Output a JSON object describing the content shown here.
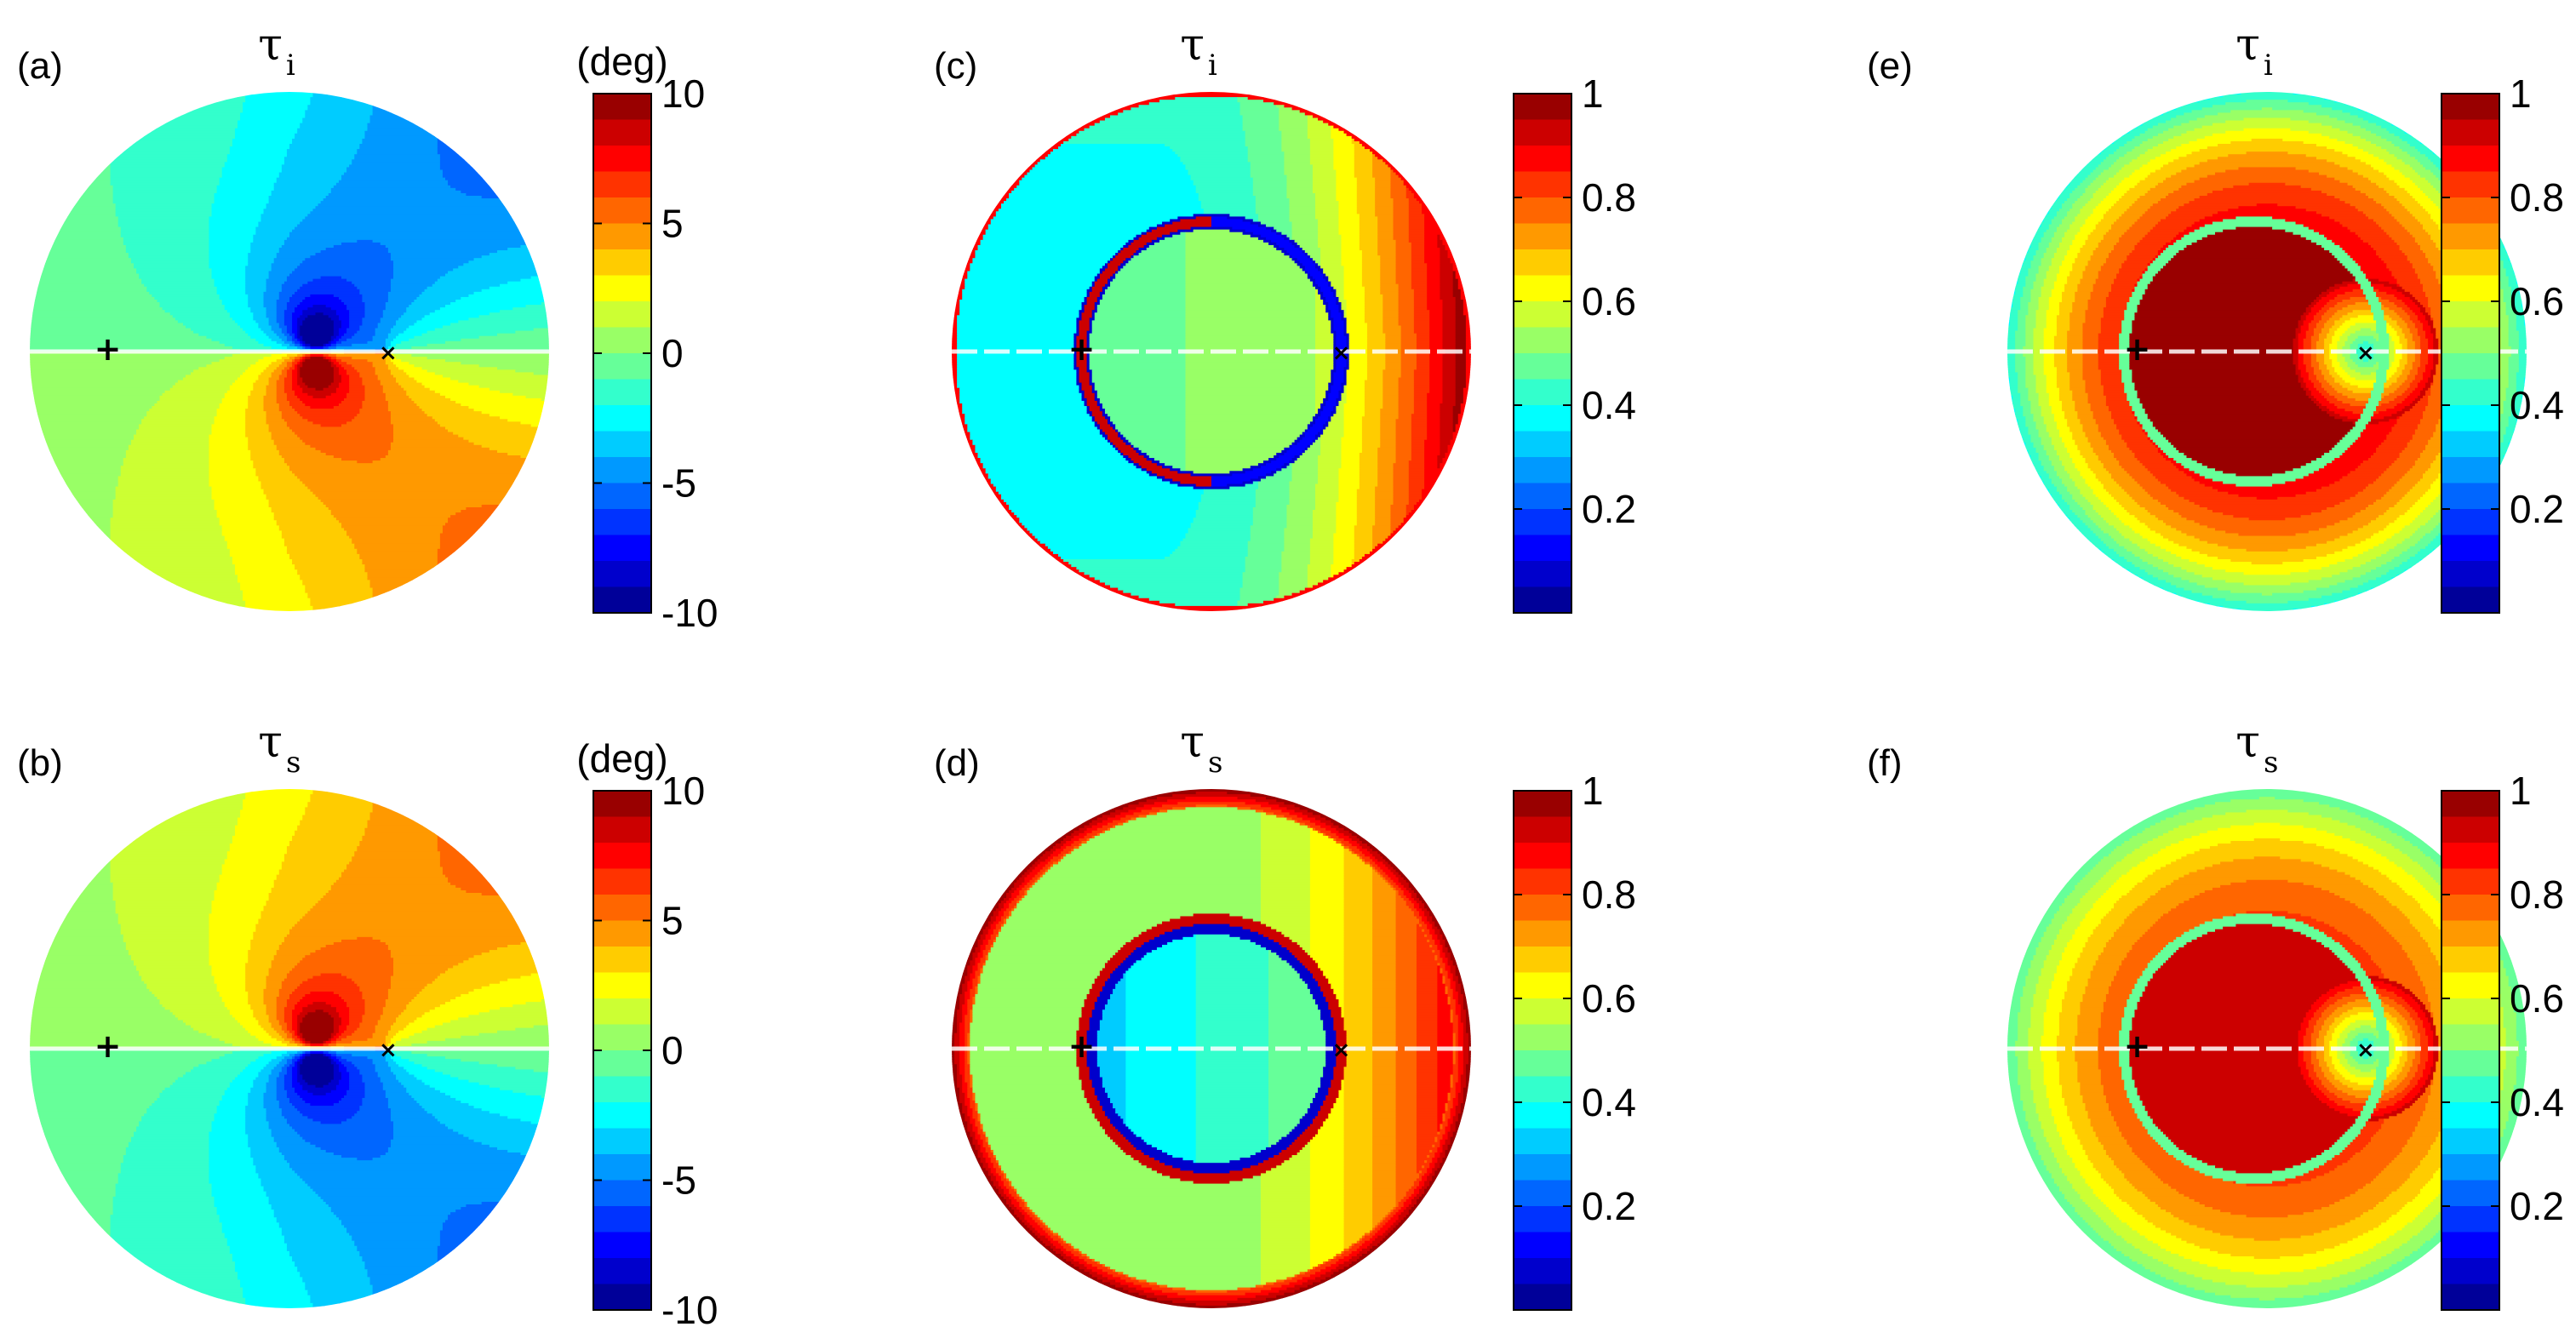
{
  "chart_data": [
    {
      "type": "heatmap",
      "panel_label": "(a)",
      "title": "τ",
      "title_subscript": "i",
      "colorbar": {
        "unit": "(deg)",
        "min": -10,
        "max": 10,
        "ticks": [
          10,
          5,
          0,
          -5,
          -10
        ],
        "tick_labels": [
          "10",
          "5",
          "0",
          "-5",
          "-10"
        ],
        "levels": 20
      },
      "pattern": "phase-dipole",
      "sign": 1,
      "markers": [
        {
          "symbol": "+",
          "x": -0.7
        },
        {
          "symbol": "×",
          "x": 0.38
        }
      ]
    },
    {
      "type": "heatmap",
      "panel_label": "(b)",
      "title": "τ",
      "title_subscript": "s",
      "colorbar": {
        "unit": "(deg)",
        "min": -10,
        "max": 10,
        "ticks": [
          10,
          5,
          0,
          -5,
          -10
        ],
        "tick_labels": [
          "10",
          "5",
          "0",
          "-5",
          "-10"
        ],
        "levels": 20
      },
      "pattern": "phase-dipole",
      "sign": -1,
      "markers": [
        {
          "symbol": "+",
          "x": -0.7
        },
        {
          "symbol": "×",
          "x": 0.38
        }
      ]
    },
    {
      "type": "heatmap",
      "panel_label": "(c)",
      "title": "τ",
      "title_subscript": "i",
      "colorbar": {
        "unit": "",
        "min": 0,
        "max": 1,
        "ticks": [
          1,
          0.8,
          0.6,
          0.4,
          0.2
        ],
        "tick_labels": [
          "1",
          "0.8",
          "0.6",
          "0.4",
          "0.2"
        ],
        "levels": 20
      },
      "pattern": "magnitude-ring",
      "variant": "i",
      "markers": [
        {
          "symbol": "+",
          "x": -0.5
        },
        {
          "symbol": "×",
          "x": 0.5
        }
      ]
    },
    {
      "type": "heatmap",
      "panel_label": "(d)",
      "title": "τ",
      "title_subscript": "s",
      "colorbar": {
        "unit": "",
        "min": 0,
        "max": 1,
        "ticks": [
          1,
          0.8,
          0.6,
          0.4,
          0.2
        ],
        "tick_labels": [
          "1",
          "0.8",
          "0.6",
          "0.4",
          "0.2"
        ],
        "levels": 20
      },
      "pattern": "magnitude-ring",
      "variant": "s",
      "markers": [
        {
          "symbol": "+",
          "x": -0.5
        },
        {
          "symbol": "×",
          "x": 0.5
        }
      ]
    },
    {
      "type": "heatmap",
      "panel_label": "(e)",
      "title": "τ",
      "title_subscript": "i",
      "colorbar": {
        "unit": "",
        "min": 0,
        "max": 1,
        "ticks": [
          1,
          0.8,
          0.6,
          0.4,
          0.2
        ],
        "tick_labels": [
          "1",
          "0.8",
          "0.6",
          "0.4",
          "0.2"
        ],
        "levels": 20
      },
      "pattern": "magnitude-crescent",
      "variant": "i",
      "markers": [
        {
          "symbol": "+",
          "x": -0.5
        },
        {
          "symbol": "×",
          "x": 0.38
        }
      ]
    },
    {
      "type": "heatmap",
      "panel_label": "(f)",
      "title": "τ",
      "title_subscript": "s",
      "colorbar": {
        "unit": "",
        "min": 0,
        "max": 1,
        "ticks": [
          1,
          0.8,
          0.6,
          0.4,
          0.2
        ],
        "tick_labels": [
          "1",
          "0.8",
          "0.6",
          "0.4",
          "0.2"
        ],
        "levels": 20
      },
      "pattern": "magnitude-crescent",
      "variant": "s",
      "markers": [
        {
          "symbol": "+",
          "x": -0.5
        },
        {
          "symbol": "×",
          "x": 0.38
        }
      ]
    }
  ]
}
